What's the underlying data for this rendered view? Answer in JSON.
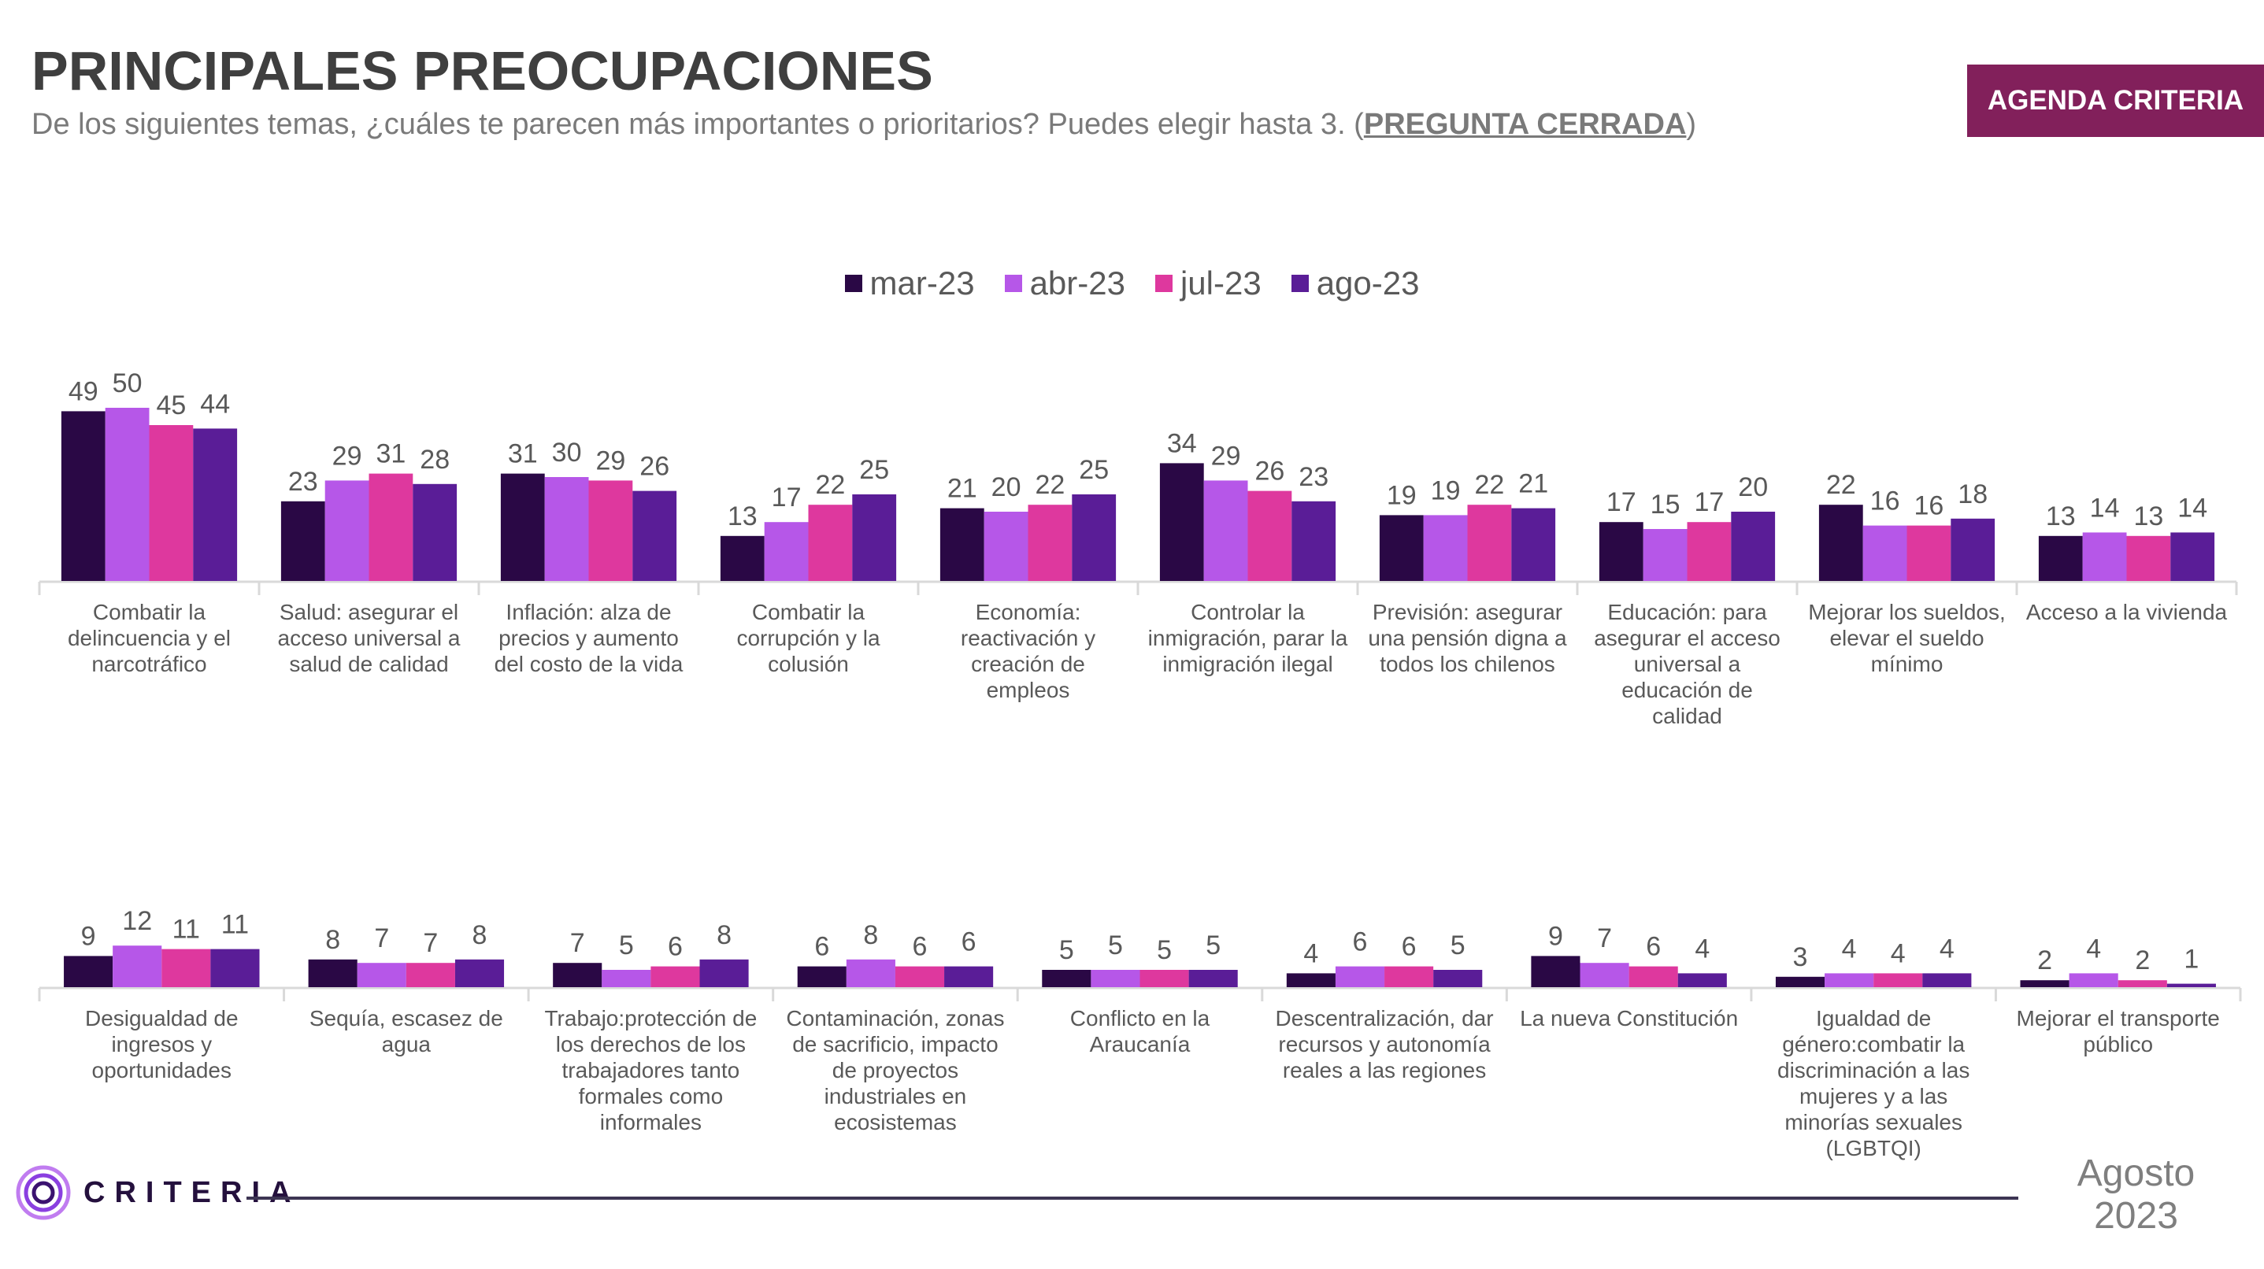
{
  "header": {
    "title": "PRINCIPALES PREOCUPACIONES",
    "subtitle_text": "De los siguientes temas, ¿cuáles te parecen más importantes o prioritarios? Puedes elegir hasta 3. (",
    "subtitle_emph": "PREGUNTA CERRADA",
    "subtitle_close": ")",
    "badge": "AGENDA CRITERIA"
  },
  "footer": {
    "logo_text": "CRITERIA",
    "date_month": "Agosto",
    "date_year": "2023"
  },
  "colors": {
    "mar-23": "#2a0845",
    "abr-23": "#b657e8",
    "jul-23": "#de389e",
    "ago-23": "#5a1d97",
    "badge": "#82205b"
  },
  "chart_data": [
    {
      "type": "bar",
      "title": "",
      "xlabel": "",
      "ylabel": "",
      "ylim": [
        0,
        50
      ],
      "grid": false,
      "legend": "top-center",
      "categories": [
        "Combatir la delincuencia y el narcotráfico",
        "Salud: asegurar el acceso universal a salud de calidad",
        "Inflación: alza de precios y aumento del costo de la vida",
        "Combatir la corrupción y la colusión",
        "Economía: reactivación y creación de empleos",
        "Controlar la inmigración, parar la inmigración ilegal",
        "Previsión: asegurar una pensión digna a todos los chilenos",
        "Educación: para asegurar el acceso universal a educación de calidad",
        "Mejorar los sueldos, elevar el sueldo mínimo",
        "Acceso a la vivienda"
      ],
      "category_lines": [
        [
          "Combatir la",
          "delincuencia y el",
          "narcotráfico"
        ],
        [
          "Salud: asegurar el",
          "acceso universal a",
          "salud de calidad"
        ],
        [
          "Inflación: alza de",
          "precios y aumento",
          "del costo de la vida"
        ],
        [
          "Combatir la",
          "corrupción y la",
          "colusión"
        ],
        [
          "Economía:",
          "reactivación y",
          "creación de",
          "empleos"
        ],
        [
          "Controlar la",
          "inmigración, parar la",
          "inmigración ilegal"
        ],
        [
          "Previsión: asegurar",
          "una pensión digna a",
          "todos los chilenos"
        ],
        [
          "Educación: para",
          "asegurar el acceso",
          "universal a",
          "educación de",
          "calidad"
        ],
        [
          "Mejorar los sueldos,",
          "elevar el sueldo",
          "mínimo"
        ],
        [
          "Acceso a la vivienda"
        ]
      ],
      "series": [
        {
          "name": "mar-23",
          "values": [
            49,
            23,
            31,
            13,
            21,
            34,
            19,
            17,
            22,
            13
          ]
        },
        {
          "name": "abr-23",
          "values": [
            50,
            29,
            30,
            17,
            20,
            29,
            19,
            15,
            16,
            14
          ]
        },
        {
          "name": "jul-23",
          "values": [
            45,
            31,
            29,
            22,
            22,
            26,
            22,
            17,
            16,
            13
          ]
        },
        {
          "name": "ago-23",
          "values": [
            44,
            28,
            26,
            25,
            25,
            23,
            21,
            20,
            18,
            14
          ]
        }
      ]
    },
    {
      "type": "bar",
      "title": "",
      "xlabel": "",
      "ylabel": "",
      "ylim": [
        0,
        50
      ],
      "grid": false,
      "categories": [
        "Desigualdad de ingresos y oportunidades",
        "Sequía, escasez de agua",
        "Trabajo:protección de los derechos de los trabajadores tanto formales como informales",
        "Contaminación, zonas de sacrificio, impacto de proyectos industriales en ecosistemas",
        "Conflicto en la Araucanía",
        "Descentralización, dar recursos y autonomía reales a las regiones",
        "La nueva Constitución",
        "Igualdad de género:combatir la discriminación a las mujeres y a las minorías sexuales (LGBTQI)",
        "Mejorar el transporte público"
      ],
      "category_lines": [
        [
          "Desigualdad de",
          "ingresos y",
          "oportunidades"
        ],
        [
          "Sequía, escasez de",
          "agua"
        ],
        [
          "Trabajo:protección de",
          "los derechos de los",
          "trabajadores tanto",
          "formales como",
          "informales"
        ],
        [
          "Contaminación, zonas",
          "de sacrificio, impacto",
          "de proyectos",
          "industriales en",
          "ecosistemas"
        ],
        [
          "Conflicto en la",
          "Araucanía"
        ],
        [
          "Descentralización, dar",
          "recursos y autonomía",
          "reales a las regiones"
        ],
        [
          "La nueva Constitución"
        ],
        [
          "Igualdad de",
          "género:combatir la",
          "discriminación a las",
          "mujeres y a las",
          "minorías sexuales",
          "(LGBTQI)"
        ],
        [
          "Mejorar el transporte",
          "público"
        ]
      ],
      "series": [
        {
          "name": "mar-23",
          "values": [
            9,
            8,
            7,
            6,
            5,
            4,
            9,
            3,
            2
          ]
        },
        {
          "name": "abr-23",
          "values": [
            12,
            7,
            5,
            8,
            5,
            6,
            7,
            4,
            4
          ]
        },
        {
          "name": "jul-23",
          "values": [
            11,
            7,
            6,
            6,
            5,
            6,
            6,
            4,
            2
          ]
        },
        {
          "name": "ago-23",
          "values": [
            11,
            8,
            8,
            6,
            5,
            5,
            4,
            4,
            1
          ]
        }
      ]
    }
  ]
}
